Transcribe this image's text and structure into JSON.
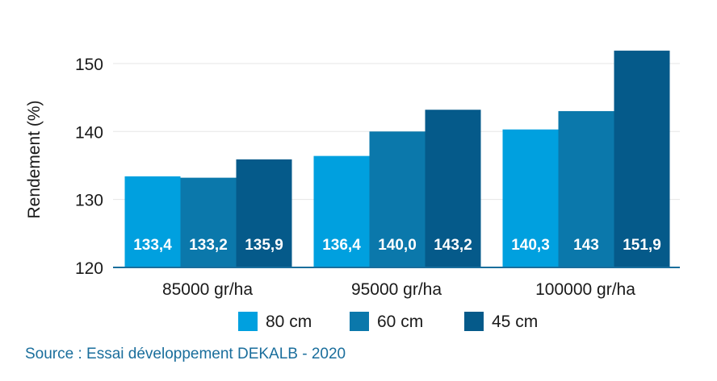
{
  "chart_data": {
    "type": "bar",
    "categories": [
      "85000 gr/ha",
      "95000 gr/ha",
      "100000 gr/ha"
    ],
    "series": [
      {
        "name": "80 cm",
        "values": [
          133.4,
          136.4,
          140.3
        ],
        "labels": [
          "133,4",
          "136,4",
          "140,3"
        ],
        "color": "#00a0df"
      },
      {
        "name": "60 cm",
        "values": [
          133.2,
          140.0,
          143.0
        ],
        "labels": [
          "133,2",
          "140,0",
          "143"
        ],
        "color": "#0b78ab"
      },
      {
        "name": "45 cm",
        "values": [
          135.9,
          143.2,
          151.9
        ],
        "labels": [
          "135,9",
          "143,2",
          "151,9"
        ],
        "color": "#055a8a"
      }
    ],
    "ylabel": "Rendement (%)",
    "ylim": [
      120,
      152
    ],
    "yticks": [
      120,
      130,
      140,
      150
    ],
    "grid": true,
    "legend_position": "bottom"
  },
  "source": "Source : Essai développement DEKALB - 2020"
}
